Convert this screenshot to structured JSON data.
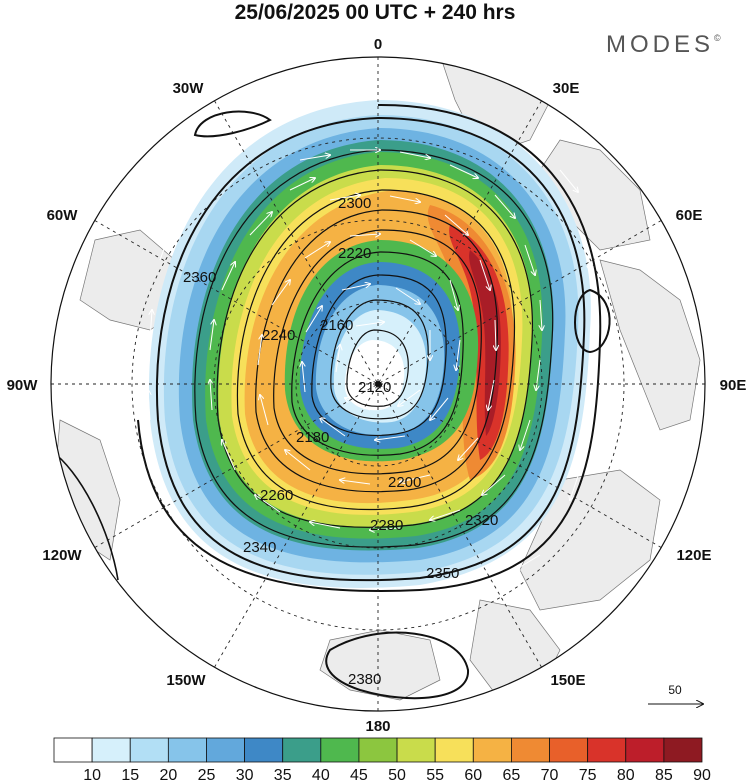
{
  "title": "25/06/2025  00 UTC  + 240 hrs",
  "brand": "MODES",
  "brand_mark": "©",
  "longitude_labels": {
    "top": "0",
    "top_right": "30E",
    "right_upper": "60E",
    "right": "90E",
    "right_lower": "120E",
    "bottom_right": "150E",
    "bottom": "180",
    "bottom_left": "150W",
    "left_lower": "120W",
    "left": "90W",
    "left_upper": "60W",
    "top_left": "30W"
  },
  "contour_labels": [
    "2120",
    "2160",
    "2180",
    "2200",
    "2220",
    "2240",
    "2260",
    "2280",
    "2300",
    "2320",
    "2340",
    "2350",
    "2360",
    "2380"
  ],
  "vector_reference": {
    "value": "50",
    "icon": "arrow-right-icon"
  },
  "colorbar": {
    "ticks": [
      "10",
      "15",
      "20",
      "25",
      "30",
      "35",
      "40",
      "45",
      "50",
      "55",
      "60",
      "65",
      "70",
      "75",
      "80",
      "85",
      "90"
    ],
    "colors": [
      "#ffffff",
      "#d6f0fb",
      "#b2dff5",
      "#86c4ea",
      "#62a8dc",
      "#3e88c6",
      "#3b9e8a",
      "#4fb84e",
      "#8cc63f",
      "#c9dc4b",
      "#f7e05a",
      "#f5b244",
      "#ef8a33",
      "#e8602a",
      "#d9332a",
      "#bd1e2a",
      "#8e1a22"
    ]
  },
  "chart_data": {
    "type": "heatmap",
    "projection": "polar-stereographic",
    "title": "25/06/2025  00 UTC  + 240 hrs",
    "field": "wind speed (shaded) with geopotential height contours and wind vectors",
    "contour_values": [
      2120,
      2160,
      2180,
      2200,
      2220,
      2240,
      2260,
      2280,
      2300,
      2320,
      2340,
      2350,
      2360,
      2380
    ],
    "shading_levels": [
      10,
      15,
      20,
      25,
      30,
      35,
      40,
      45,
      50,
      55,
      60,
      65,
      70,
      75,
      80,
      85,
      90
    ],
    "reference_vector": 50,
    "grid": true
  }
}
